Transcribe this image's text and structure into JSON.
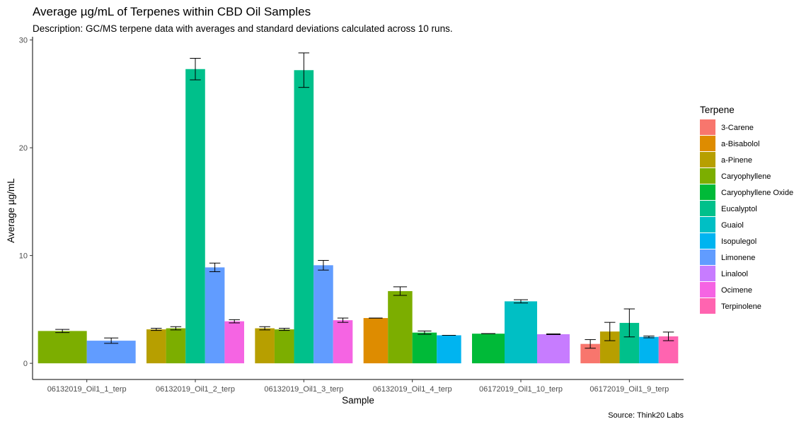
{
  "chart_data": {
    "type": "bar",
    "title": "Average µg/mL of Terpenes within CBD Oil Samples",
    "subtitle": "Description: GC/MS terpene data with averages and standard deviations calculated across 10 runs.",
    "xlabel": "Sample",
    "ylabel": "Average µg/mL",
    "caption": "Source: Think20 Labs",
    "ylim": [
      -1.5,
      30.3
    ],
    "yticks": [
      0,
      10,
      20,
      30
    ],
    "grid": false,
    "legend": {
      "title": "Terpene",
      "position": "right",
      "entries": [
        {
          "name": "3-Carene",
          "color": "#F8766D"
        },
        {
          "name": "a-Bisabolol",
          "color": "#DE8C00"
        },
        {
          "name": "a-Pinene",
          "color": "#B79F00"
        },
        {
          "name": "Caryophyllene",
          "color": "#7CAE00"
        },
        {
          "name": "Caryophyllene Oxide",
          "color": "#00BA38"
        },
        {
          "name": "Eucalyptol",
          "color": "#00C08B"
        },
        {
          "name": "Guaiol",
          "color": "#00BFC4"
        },
        {
          "name": "Isopulegol",
          "color": "#00B4F0"
        },
        {
          "name": "Limonene",
          "color": "#619CFF"
        },
        {
          "name": "Linalool",
          "color": "#C77CFF"
        },
        {
          "name": "Ocimene",
          "color": "#F564E3"
        },
        {
          "name": "Terpinolene",
          "color": "#FF64B0"
        }
      ]
    },
    "categories": [
      "06132019_Oil1_1_terp",
      "06132019_Oil1_2_terp",
      "06132019_Oil1_3_terp",
      "06132019_Oil1_4_terp",
      "06172019_Oil1_10_terp",
      "06172019_Oil1_9_terp"
    ],
    "groups": [
      {
        "category": "06132019_Oil1_1_terp",
        "bars": [
          {
            "terpene": "Caryophyllene",
            "value": 3.0,
            "sd": 0.15
          },
          {
            "terpene": "Limonene",
            "value": 2.1,
            "sd": 0.25
          }
        ]
      },
      {
        "category": "06132019_Oil1_2_terp",
        "bars": [
          {
            "terpene": "a-Pinene",
            "value": 3.15,
            "sd": 0.1
          },
          {
            "terpene": "Caryophyllene",
            "value": 3.25,
            "sd": 0.15
          },
          {
            "terpene": "Eucalyptol",
            "value": 27.3,
            "sd": 1.0
          },
          {
            "terpene": "Limonene",
            "value": 8.9,
            "sd": 0.4
          },
          {
            "terpene": "Ocimene",
            "value": 3.9,
            "sd": 0.15
          }
        ]
      },
      {
        "category": "06132019_Oil1_3_terp",
        "bars": [
          {
            "terpene": "a-Pinene",
            "value": 3.25,
            "sd": 0.15
          },
          {
            "terpene": "Caryophyllene",
            "value": 3.15,
            "sd": 0.1
          },
          {
            "terpene": "Eucalyptol",
            "value": 27.2,
            "sd": 1.6
          },
          {
            "terpene": "Limonene",
            "value": 9.1,
            "sd": 0.45
          },
          {
            "terpene": "Ocimene",
            "value": 4.0,
            "sd": 0.2
          }
        ]
      },
      {
        "category": "06132019_Oil1_4_terp",
        "bars": [
          {
            "terpene": "a-Bisabolol",
            "value": 4.2,
            "sd": 0
          },
          {
            "terpene": "Caryophyllene",
            "value": 6.7,
            "sd": 0.4
          },
          {
            "terpene": "Caryophyllene Oxide",
            "value": 2.85,
            "sd": 0.15
          },
          {
            "terpene": "Isopulegol",
            "value": 2.6,
            "sd": 0
          }
        ]
      },
      {
        "category": "06172019_Oil1_10_terp",
        "bars": [
          {
            "terpene": "Caryophyllene Oxide",
            "value": 2.75,
            "sd": 0
          },
          {
            "terpene": "Guaiol",
            "value": 5.75,
            "sd": 0.15
          },
          {
            "terpene": "Linalool",
            "value": 2.7,
            "sd": 0.03
          }
        ]
      },
      {
        "category": "06172019_Oil1_9_terp",
        "bars": [
          {
            "terpene": "3-Carene",
            "value": 1.8,
            "sd": 0.4
          },
          {
            "terpene": "a-Pinene",
            "value": 2.95,
            "sd": 0.85
          },
          {
            "terpene": "Eucalyptol",
            "value": 3.75,
            "sd": 1.3
          },
          {
            "terpene": "Isopulegol",
            "value": 2.45,
            "sd": 0.08
          },
          {
            "terpene": "Terpinolene",
            "value": 2.5,
            "sd": 0.4
          }
        ]
      }
    ]
  }
}
